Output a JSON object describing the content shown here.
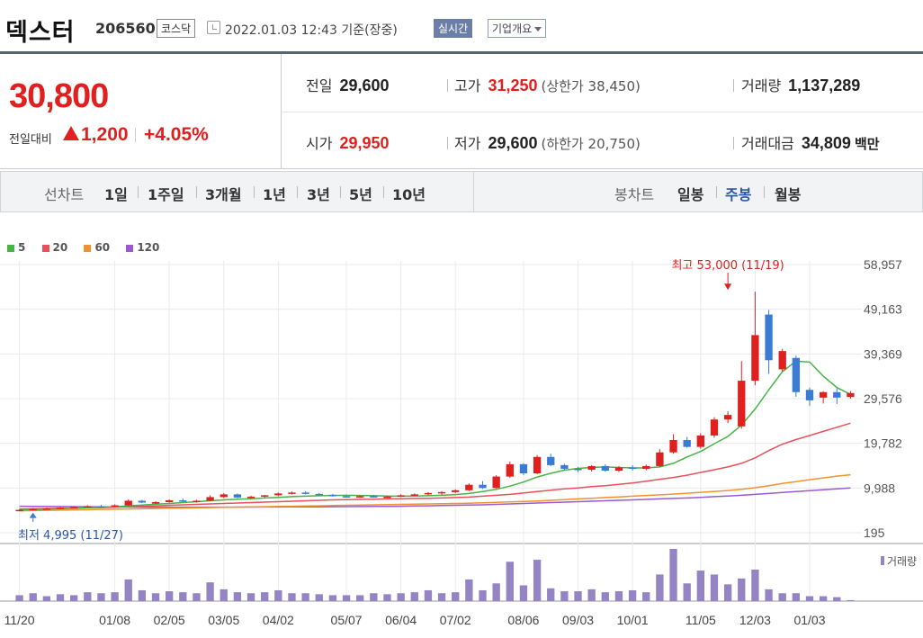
{
  "header": {
    "name": "덱스터",
    "code": "206560",
    "market": "코스닥",
    "datetime": "2022.01.03 12:43 기준(장중)",
    "live_label": "실시간",
    "info_label": "기업개요"
  },
  "quote": {
    "price": "30,800",
    "compare_label": "전일대비",
    "change": "1,200",
    "change_rate": "+4.05%",
    "prev_close_label": "전일",
    "prev_close": "29,600",
    "high_label": "고가",
    "high": "31,250",
    "upper_limit": "(상한가 38,450)",
    "volume_label": "거래량",
    "volume": "1,137,289",
    "open_label": "시가",
    "open": "29,950",
    "low_label": "저가",
    "low": "29,600",
    "lower_limit": "(하한가 20,750)",
    "amount_label": "거래대금",
    "amount": "34,809",
    "amount_unit": "백만"
  },
  "period_bar": {
    "line_label": "선차트",
    "line_items": [
      "1일",
      "1주일",
      "3개월",
      "1년",
      "3년",
      "5년",
      "10년"
    ],
    "candle_label": "봉차트",
    "candle_items": [
      "일봉",
      "주봉",
      "월봉"
    ],
    "candle_active": "주봉"
  },
  "colors": {
    "up": "#e0201e",
    "down": "#3a7bd5",
    "ma5": "#46b446",
    "ma20": "#e8505a",
    "ma60": "#f0922d",
    "ma120": "#9b59d0",
    "volume": "#9584c4"
  },
  "chart_data": {
    "type": "candlestick",
    "legend": [
      {
        "name": "5",
        "color": "#46b446"
      },
      {
        "name": "20",
        "color": "#e8505a"
      },
      {
        "name": "60",
        "color": "#f0922d"
      },
      {
        "name": "120",
        "color": "#9b59d0"
      }
    ],
    "y_ticks": [
      "58,957",
      "49,163",
      "39,369",
      "29,576",
      "19,782",
      "9,988",
      "195"
    ],
    "y_range": [
      195,
      58957
    ],
    "x_ticks": [
      "11/20",
      "01/08",
      "02/05",
      "03/05",
      "04/02",
      "05/07",
      "06/04",
      "07/02",
      "08/06",
      "09/03",
      "10/01",
      "11/05",
      "12/03",
      "01/03"
    ],
    "x_tick_index": [
      0,
      7,
      11,
      15,
      19,
      24,
      28,
      32,
      37,
      41,
      45,
      50,
      54,
      58
    ],
    "max_annotation": {
      "label": "최고 53,000 (11/19)",
      "index": 52,
      "value": 53000
    },
    "min_annotation": {
      "label": "최저 4,995 (11/27)",
      "index": 1,
      "value": 4995
    },
    "volume_label": "거래량",
    "candles": [
      [
        5000,
        5300,
        4995,
        5200,
        6
      ],
      [
        5200,
        5600,
        5100,
        5400,
        8
      ],
      [
        5400,
        5700,
        5300,
        5500,
        5
      ],
      [
        5500,
        5800,
        5400,
        5700,
        7
      ],
      [
        5700,
        6000,
        5600,
        5800,
        6
      ],
      [
        5800,
        6200,
        5700,
        6000,
        9
      ],
      [
        6000,
        6300,
        5800,
        5900,
        8
      ],
      [
        5900,
        6400,
        5800,
        6200,
        9
      ],
      [
        6200,
        7500,
        6100,
        7200,
        22
      ],
      [
        7200,
        7400,
        6700,
        6800,
        11
      ],
      [
        6800,
        7100,
        6500,
        6900,
        8
      ],
      [
        6900,
        7500,
        6800,
        7300,
        10
      ],
      [
        7300,
        7700,
        6900,
        7000,
        9
      ],
      [
        7000,
        7400,
        6800,
        7200,
        8
      ],
      [
        7200,
        8400,
        7100,
        8000,
        19
      ],
      [
        8000,
        8900,
        7800,
        8600,
        12
      ],
      [
        8600,
        8800,
        7800,
        7900,
        9
      ],
      [
        7900,
        8300,
        7700,
        8100,
        8
      ],
      [
        8100,
        8500,
        7900,
        8400,
        9
      ],
      [
        8400,
        9000,
        8200,
        8800,
        11
      ],
      [
        8800,
        9200,
        8600,
        9000,
        8
      ],
      [
        9000,
        9300,
        8600,
        8700,
        8
      ],
      [
        8700,
        8900,
        8400,
        8500,
        7
      ],
      [
        8500,
        8700,
        8100,
        8200,
        6
      ],
      [
        8200,
        8400,
        7900,
        8100,
        6
      ],
      [
        8100,
        8400,
        7900,
        8200,
        6
      ],
      [
        8200,
        8500,
        7900,
        8000,
        8
      ],
      [
        8000,
        8300,
        7800,
        8100,
        7
      ],
      [
        8100,
        8600,
        8000,
        8400,
        8
      ],
      [
        8400,
        8800,
        8200,
        8600,
        9
      ],
      [
        8600,
        9100,
        8400,
        8900,
        11
      ],
      [
        8900,
        9300,
        8500,
        9100,
        8
      ],
      [
        9100,
        9700,
        8900,
        9500,
        9
      ],
      [
        9500,
        11000,
        9300,
        10700,
        22
      ],
      [
        10700,
        11500,
        9800,
        10000,
        11
      ],
      [
        10000,
        12800,
        9900,
        12500,
        18
      ],
      [
        12500,
        15800,
        12200,
        15200,
        40
      ],
      [
        15200,
        15400,
        12800,
        13200,
        16
      ],
      [
        13200,
        17200,
        13000,
        16800,
        42
      ],
      [
        16800,
        17500,
        14800,
        15000,
        13
      ],
      [
        15000,
        15300,
        13900,
        14200,
        10
      ],
      [
        14200,
        14600,
        13500,
        14000,
        10
      ],
      [
        14000,
        15000,
        13600,
        14800,
        12
      ],
      [
        14800,
        15200,
        13600,
        13800,
        9
      ],
      [
        13800,
        14800,
        13500,
        14500,
        10
      ],
      [
        14500,
        15000,
        13800,
        14200,
        11
      ],
      [
        14200,
        15100,
        13900,
        14800,
        9
      ],
      [
        14800,
        18500,
        14600,
        17800,
        27
      ],
      [
        17800,
        21800,
        17500,
        20500,
        53
      ],
      [
        20500,
        21200,
        18800,
        19000,
        18
      ],
      [
        19000,
        22000,
        18600,
        21500,
        31
      ],
      [
        21500,
        25500,
        21000,
        25000,
        27
      ],
      [
        25000,
        26800,
        24200,
        26000,
        17
      ],
      [
        23500,
        37800,
        23000,
        33500,
        23
      ],
      [
        33500,
        53000,
        32500,
        43500,
        32
      ],
      [
        48000,
        49000,
        35000,
        38000,
        12
      ],
      [
        36000,
        40500,
        35500,
        40000,
        8
      ],
      [
        38500,
        39000,
        30000,
        31000,
        8
      ],
      [
        31500,
        32000,
        28000,
        29200,
        5
      ],
      [
        29800,
        31200,
        28500,
        31000,
        5
      ],
      [
        31000,
        31800,
        28400,
        29800,
        4
      ],
      [
        29950,
        31250,
        29600,
        30800,
        1
      ]
    ],
    "ma5": [
      5200,
      5300,
      5350,
      5450,
      5550,
      5650,
      5750,
      5900,
      6100,
      6250,
      6450,
      6600,
      6800,
      7000,
      7200,
      7400,
      7550,
      7650,
      7800,
      7950,
      8100,
      8200,
      8300,
      8350,
      8400,
      8350,
      8300,
      8250,
      8200,
      8250,
      8300,
      8400,
      8550,
      8800,
      9200,
      9700,
      10400,
      11300,
      12400,
      13200,
      13900,
      14300,
      14500,
      14600,
      14500,
      14400,
      14400,
      14600,
      15400,
      16800,
      18000,
      19700,
      21300,
      23800,
      27300,
      31500,
      35500,
      37800,
      37600,
      34500,
      32000,
      30500
    ],
    "ma20": [
      5400,
      5450,
      5500,
      5550,
      5600,
      5650,
      5700,
      5800,
      5900,
      6000,
      6100,
      6200,
      6300,
      6400,
      6500,
      6600,
      6700,
      6800,
      6900,
      7000,
      7100,
      7200,
      7300,
      7400,
      7450,
      7500,
      7550,
      7600,
      7650,
      7700,
      7750,
      7800,
      7900,
      8000,
      8200,
      8400,
      8600,
      8900,
      9200,
      9500,
      9800,
      10000,
      10300,
      10500,
      10800,
      11100,
      11500,
      11900,
      12300,
      12800,
      13400,
      14000,
      14600,
      15400,
      16600,
      18200,
      19600,
      20600,
      21500,
      22400,
      23300,
      24200
    ],
    "ma60": [
      5000,
      5050,
      5100,
      5150,
      5200,
      5250,
      5300,
      5350,
      5400,
      5450,
      5500,
      5550,
      5600,
      5650,
      5700,
      5750,
      5800,
      5850,
      5900,
      5950,
      6000,
      6050,
      6100,
      6150,
      6200,
      6250,
      6300,
      6350,
      6400,
      6450,
      6500,
      6550,
      6600,
      6650,
      6750,
      6850,
      6950,
      7050,
      7150,
      7300,
      7450,
      7600,
      7750,
      7900,
      8050,
      8200,
      8350,
      8500,
      8650,
      8850,
      9050,
      9250,
      9450,
      9700,
      10050,
      10500,
      11000,
      11400,
      11800,
      12200,
      12600,
      12900
    ],
    "ma120": [
      6000,
      5980,
      5960,
      5940,
      5920,
      5900,
      5880,
      5860,
      5840,
      5820,
      5800,
      5800,
      5800,
      5800,
      5800,
      5800,
      5810,
      5820,
      5830,
      5840,
      5850,
      5860,
      5880,
      5900,
      5920,
      5940,
      5960,
      5980,
      6000,
      6050,
      6100,
      6150,
      6200,
      6250,
      6300,
      6400,
      6500,
      6600,
      6700,
      6800,
      6900,
      7000,
      7100,
      7200,
      7300,
      7400,
      7500,
      7600,
      7700,
      7800,
      7950,
      8100,
      8250,
      8400,
      8600,
      8800,
      9000,
      9200,
      9400,
      9600,
      9800,
      10000
    ]
  }
}
